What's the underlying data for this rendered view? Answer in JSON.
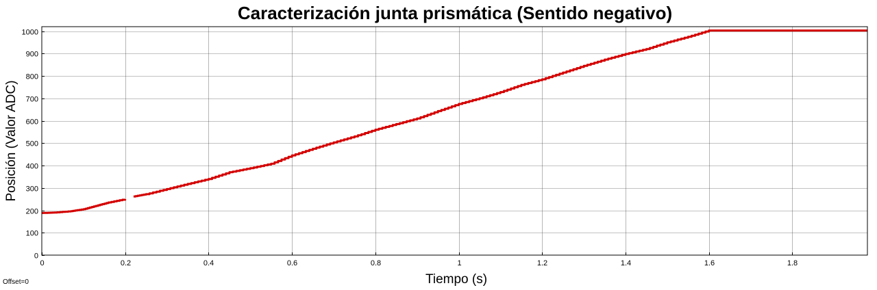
{
  "chart_data": {
    "type": "line",
    "title": "Caracterización junta prismática (Sentido negativo)",
    "xlabel": "Tiempo (s)",
    "ylabel": "Posición (Valor ADC)",
    "xlim": [
      0,
      1.98
    ],
    "ylim": [
      0,
      1020
    ],
    "xticks": [
      0,
      0.2,
      0.4,
      0.6,
      0.8,
      1,
      1.2,
      1.4,
      1.6,
      1.8
    ],
    "xtick_labels": [
      "0",
      "0.2",
      "0.4",
      "0.6",
      "0.8",
      "1",
      "1.2",
      "1.4",
      "1.6",
      "1.8"
    ],
    "yticks": [
      0,
      100,
      200,
      300,
      400,
      500,
      600,
      700,
      800,
      900,
      1000
    ],
    "ytick_labels": [
      "0",
      "100",
      "200",
      "300",
      "400",
      "500",
      "600",
      "700",
      "800",
      "900",
      "1000"
    ],
    "grid": true,
    "line_color": "#d40000",
    "series": [
      {
        "segments": [
          [
            [
              0,
              188
            ],
            [
              0.03,
              190
            ],
            [
              0.07,
              196
            ],
            [
              0.1,
              205
            ],
            [
              0.13,
              220
            ],
            [
              0.16,
              235
            ],
            [
              0.2,
              250
            ]
          ],
          [
            [
              0.22,
              262
            ],
            [
              0.25,
              272
            ],
            [
              0.3,
              295
            ],
            [
              0.35,
              318
            ],
            [
              0.4,
              340
            ],
            [
              0.45,
              370
            ],
            [
              0.5,
              388
            ],
            [
              0.55,
              408
            ],
            [
              0.6,
              445
            ],
            [
              0.65,
              475
            ],
            [
              0.7,
              503
            ],
            [
              0.75,
              530
            ],
            [
              0.8,
              560
            ],
            [
              0.85,
              585
            ],
            [
              0.9,
              610
            ],
            [
              0.95,
              643
            ],
            [
              1.0,
              675
            ],
            [
              1.05,
              700
            ],
            [
              1.1,
              728
            ],
            [
              1.15,
              760
            ],
            [
              1.2,
              785
            ],
            [
              1.25,
              815
            ],
            [
              1.3,
              845
            ],
            [
              1.35,
              873
            ],
            [
              1.4,
              898
            ],
            [
              1.45,
              920
            ],
            [
              1.5,
              950
            ],
            [
              1.55,
              975
            ],
            [
              1.6,
              1003
            ],
            [
              1.7,
              1003
            ],
            [
              1.8,
              1003
            ],
            [
              1.98,
              1003
            ]
          ]
        ]
      }
    ]
  },
  "offset_text": "Offset=0"
}
